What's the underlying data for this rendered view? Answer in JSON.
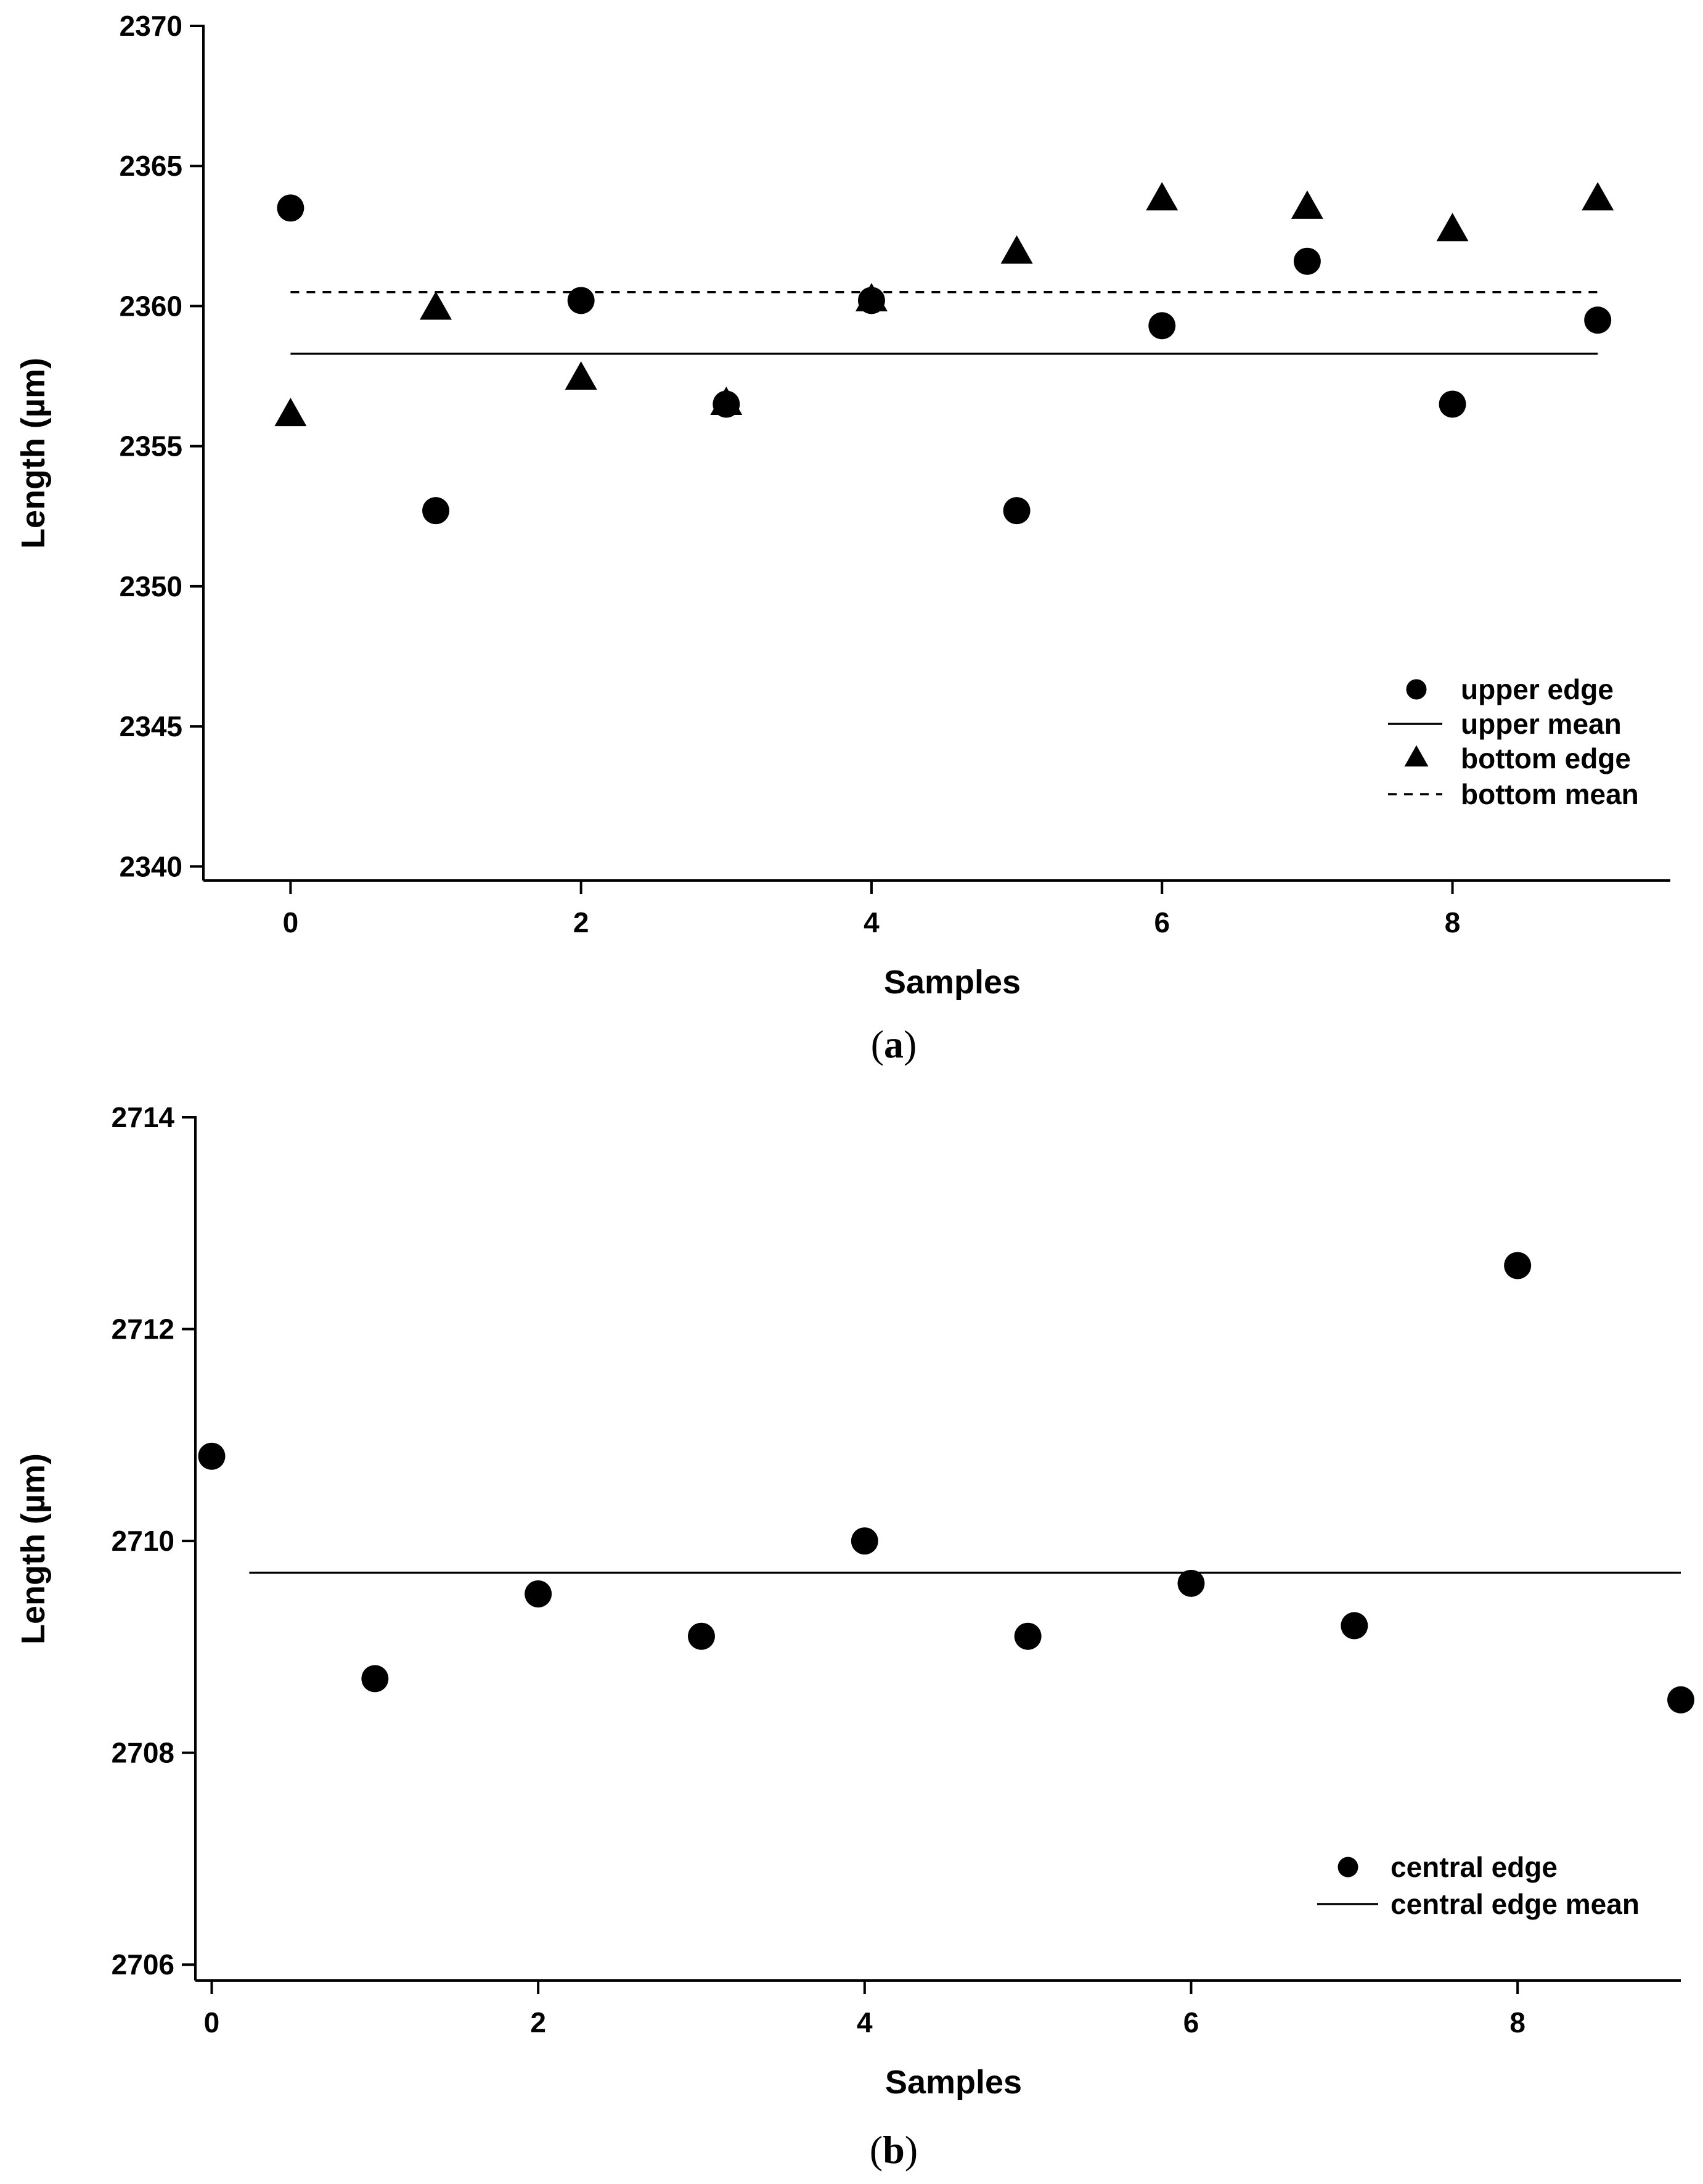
{
  "chart_data": [
    {
      "type": "scatter",
      "panel_label": "a",
      "xlabel": "Samples",
      "ylabel": "Length (µm)",
      "xlim": [
        -0.6,
        9.5
      ],
      "ylim": [
        2339.5,
        2370
      ],
      "xticks": [
        0,
        2,
        4,
        6,
        8
      ],
      "yticks": [
        2340,
        2345,
        2350,
        2355,
        2360,
        2365,
        2370
      ],
      "grid": false,
      "legend_position": "bottom-right",
      "series": [
        {
          "name": "upper edge",
          "kind": "points",
          "marker": "circle",
          "x": [
            0,
            1,
            2,
            3,
            4,
            5,
            6,
            7,
            8,
            9
          ],
          "y": [
            2363.5,
            2352.7,
            2360.2,
            2356.5,
            2360.2,
            2352.7,
            2359.3,
            2361.6,
            2356.5,
            2359.5
          ]
        },
        {
          "name": "upper mean",
          "kind": "line",
          "style": "solid",
          "x": [
            0,
            9
          ],
          "y": [
            2358.3,
            2358.3
          ]
        },
        {
          "name": "bottom edge",
          "kind": "points",
          "marker": "triangle",
          "x": [
            0,
            1,
            2,
            3,
            4,
            5,
            6,
            7,
            8,
            9
          ],
          "y": [
            2356.1,
            2359.9,
            2357.4,
            2356.5,
            2360.2,
            2361.9,
            2363.8,
            2363.5,
            2362.7,
            2363.8
          ]
        },
        {
          "name": "bottom mean",
          "kind": "line",
          "style": "dashed",
          "x": [
            0,
            9
          ],
          "y": [
            2360.5,
            2360.5
          ]
        }
      ]
    },
    {
      "type": "scatter",
      "panel_label": "b",
      "xlabel": "Samples",
      "ylabel": "Length (µm)",
      "xlim": [
        -0.1,
        9.0
      ],
      "ylim": [
        2705.85,
        2714
      ],
      "xticks": [
        0,
        2,
        4,
        6,
        8
      ],
      "yticks": [
        2706,
        2708,
        2710,
        2712,
        2714
      ],
      "grid": false,
      "legend_position": "bottom-right",
      "series": [
        {
          "name": "central edge",
          "kind": "points",
          "marker": "circle",
          "x": [
            0,
            1,
            2,
            3,
            4,
            5,
            6,
            7,
            8,
            9
          ],
          "y": [
            2710.8,
            2708.7,
            2709.5,
            2709.1,
            2710.0,
            2709.1,
            2709.6,
            2709.2,
            2712.6,
            2708.5
          ]
        },
        {
          "name": "central edge mean",
          "kind": "line",
          "style": "solid",
          "x": [
            0.23,
            9.0
          ],
          "y": [
            2709.7,
            2709.7
          ]
        }
      ]
    }
  ]
}
